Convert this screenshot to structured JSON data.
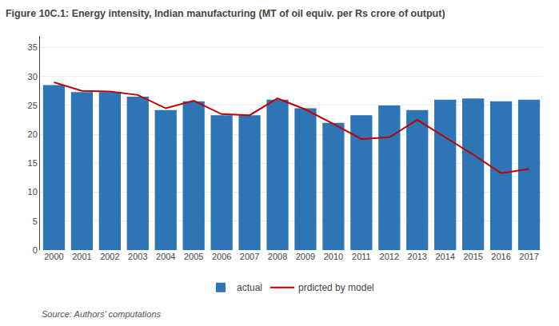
{
  "chart_data": {
    "type": "bar",
    "title": "Figure 10C.1: Energy intensity, Indian manufacturing (MT of oil equiv. per Rs crore of output)",
    "categories": [
      "2000",
      "2001",
      "2002",
      "2003",
      "2004",
      "2005",
      "2006",
      "2007",
      "2008",
      "2009",
      "2010",
      "2011",
      "2012",
      "2013",
      "2014",
      "2015",
      "2016",
      "2017"
    ],
    "series": [
      {
        "name": "actual",
        "type": "bar",
        "color": "#2e75b6",
        "values": [
          28.5,
          27.3,
          27.3,
          26.5,
          24.2,
          25.7,
          23.3,
          23.3,
          26.0,
          24.5,
          22.0,
          23.3,
          25.0,
          24.2,
          26.0,
          26.2,
          25.7,
          26.0
        ]
      },
      {
        "name": "prdicted by model",
        "type": "line",
        "color": "#c00000",
        "values": [
          29.0,
          27.5,
          27.4,
          26.8,
          24.5,
          25.8,
          23.5,
          23.3,
          26.2,
          24.3,
          21.8,
          19.2,
          19.5,
          22.5,
          19.5,
          16.5,
          13.3,
          14.0
        ]
      }
    ],
    "ylim": [
      0,
      37
    ],
    "yticks": [
      0,
      5,
      10,
      15,
      20,
      25,
      30,
      35
    ],
    "grid": true,
    "legend": "bottom",
    "annotations": [
      "Source: Authors' computations"
    ]
  }
}
